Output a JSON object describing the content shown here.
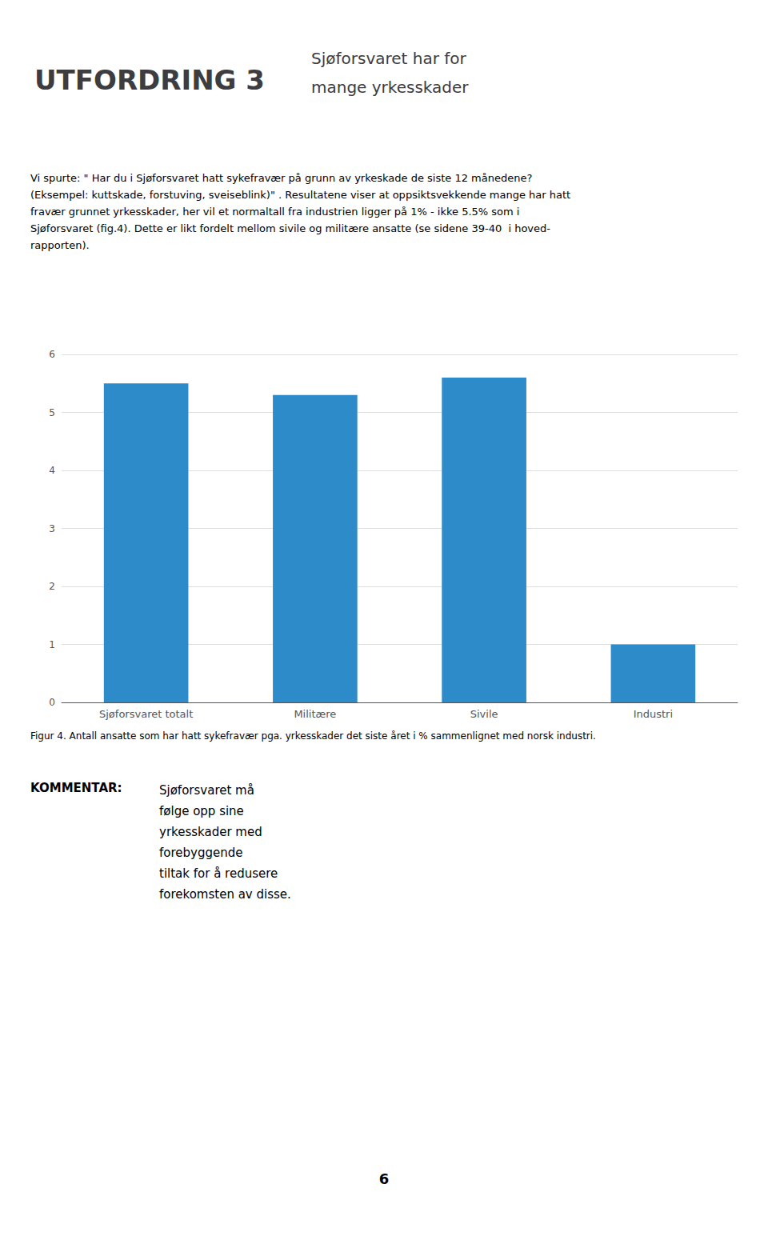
{
  "chart_data": {
    "type": "bar",
    "title": "UTFORDRING 3",
    "subtitle": "Sjøforsvaret har for\nmange yrkesskader",
    "annotations": [
      "Vi spurte: \" Har du i Sjøforsvaret hatt sykefravær på grunn av yrkeskade de siste 12 månedene?\n(Eksempel: kuttskade, forstuving, sveiseblink)\" . Resultatene viser at oppsiktsvekkende mange har hatt\nfravær grunnet yrkesskader, her vil et normaltall fra industrien ligger på 1% - ikke 5.5% som i\nSjøforsvaret (fig.4). Dette er likt fordelt mellom sivile og militære ansatte (se sidene 39-40  i hoved-\nrapporten).",
      "Figur 4. Antall ansatte som har hatt sykefravær pga. yrkesskader det siste året i % sammenlignet med norsk industri.",
      "KOMMENTAR:",
      "Sjøforsvaret må\nfølge opp sine\nyrkesskader med\nforebyggende\ntiltak for å redusere\nforekomsten av disse.",
      "6"
    ],
    "categories": [
      "Sjøforsvaret totalt",
      "Militære",
      "Sivile",
      "Industri"
    ],
    "values": [
      5.5,
      5.3,
      5.6,
      1.0
    ],
    "color": "#2e8bc9",
    "ylim": [
      0,
      6
    ],
    "yticks": [
      0,
      1,
      2,
      3,
      4,
      5,
      6
    ],
    "grid": true
  }
}
